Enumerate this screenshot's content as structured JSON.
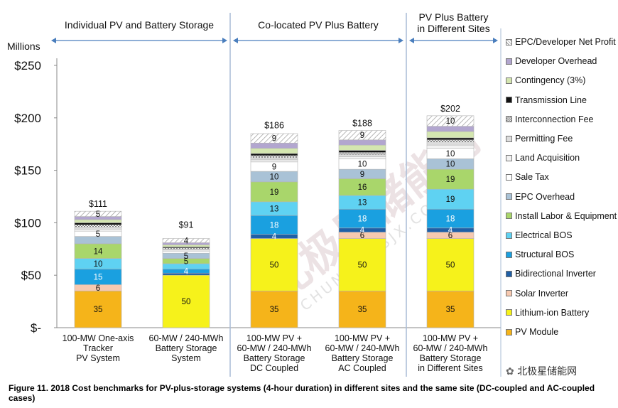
{
  "chart_data": {
    "type": "stacked-bar",
    "units_label": "Millions",
    "y_ticks": [
      "$-",
      "$50",
      "$100",
      "$150",
      "$200",
      "$250"
    ],
    "y_tick_values": [
      0,
      50,
      100,
      150,
      200,
      250
    ],
    "ylim": [
      0,
      250
    ],
    "groups": [
      {
        "label": "Individual PV and Battery Storage"
      },
      {
        "label": "Co-located PV Plus Battery"
      },
      {
        "label": "PV Plus Battery\nin Different Sites"
      }
    ],
    "categories": [
      "100-MW One-axis\nTracker\nPV System",
      "60-MW / 240-MWh\nBattery Storage\nSystem",
      "100-MW PV +\n60-MW / 240-MWh\nBattery Storage\nDC Coupled",
      "100-MW PV +\n60-MW / 240-MWh\nBattery Storage\nAC Coupled",
      "100-MW PV +\n60-MW / 240-MWh\nBattery Storage\nin Different Sites"
    ],
    "totals": [
      "$111",
      "$91",
      "$186",
      "$188",
      "$202"
    ],
    "total_values": [
      111,
      91,
      186,
      188,
      202
    ],
    "series": [
      {
        "name": "PV Module",
        "color": "#f5b41a",
        "values": [
          35,
          0,
          35,
          35,
          35
        ],
        "labels": [
          "35",
          "",
          "35",
          "35",
          "35"
        ]
      },
      {
        "name": "Lithium-ion Battery",
        "color": "#f6f21b",
        "values": [
          0,
          50,
          50,
          50,
          50
        ],
        "labels": [
          "",
          "50",
          "50",
          "50",
          "50"
        ]
      },
      {
        "name": "Solar Inverter",
        "color": "#f7c9b0",
        "values": [
          6,
          0,
          0,
          6,
          6
        ],
        "labels": [
          "6",
          "",
          "",
          "6",
          "6"
        ]
      },
      {
        "name": "Bidirectional Inverter",
        "color": "#1f5fa6",
        "values": [
          0,
          2,
          4,
          4,
          4
        ],
        "labels": [
          "",
          "",
          "4",
          "4",
          "4"
        ]
      },
      {
        "name": "Structural BOS",
        "color": "#1aa0e0",
        "values": [
          15,
          4,
          18,
          18,
          18
        ],
        "labels": [
          "15",
          "4",
          "18",
          "18",
          "18"
        ]
      },
      {
        "name": "Electrical BOS",
        "color": "#5fd2f2",
        "values": [
          10,
          5,
          13,
          13,
          19
        ],
        "labels": [
          "10",
          "",
          "13",
          "13",
          "19"
        ]
      },
      {
        "name": "Install Labor & Equipment",
        "color": "#a9d66b",
        "values": [
          14,
          5,
          19,
          16,
          19
        ],
        "labels": [
          "14",
          "5",
          "19",
          "16",
          "19"
        ]
      },
      {
        "name": "EPC Overhead",
        "color": "#a9c2d6",
        "values": [
          7,
          5,
          10,
          9,
          10
        ],
        "labels": [
          "",
          "5",
          "10",
          "9",
          "10"
        ]
      },
      {
        "name": "Sale Tax",
        "color": "#ffffff",
        "values": [
          5,
          2,
          9,
          10,
          10
        ],
        "labels": [
          "5",
          "",
          "9",
          "10",
          "10"
        ]
      },
      {
        "name": "Land Acquisition",
        "color": "#f2f2f2",
        "values": [
          2,
          1,
          2,
          2,
          3
        ],
        "labels": [
          "",
          "",
          "",
          "",
          ""
        ]
      },
      {
        "name": "Permitting Fee",
        "color": "#dddddd",
        "values": [
          2,
          1,
          2,
          2,
          3
        ],
        "labels": [
          "",
          "",
          "",
          "",
          ""
        ]
      },
      {
        "name": "Interconnection Fee",
        "color": "#9a9a9a",
        "values": [
          2,
          1,
          2,
          2,
          2
        ],
        "labels": [
          "",
          "",
          "",
          "",
          ""
        ]
      },
      {
        "name": "Transmission Line",
        "color": "#111111",
        "values": [
          2,
          1,
          2,
          2,
          2
        ],
        "labels": [
          "",
          "",
          "",
          "",
          ""
        ]
      },
      {
        "name": "Contingency (3%)",
        "color": "#d4e6b0",
        "values": [
          3,
          2,
          5,
          5,
          6
        ],
        "labels": [
          "",
          "",
          "",
          "",
          ""
        ]
      },
      {
        "name": "Developer Overhead",
        "color": "#b2a6cf",
        "values": [
          3,
          2,
          5,
          5,
          5
        ],
        "labels": [
          "",
          "",
          "",
          "",
          ""
        ]
      },
      {
        "name": "EPC/Developer Net Profit",
        "color": "#e8e8e8",
        "values": [
          5,
          4,
          9,
          9,
          10
        ],
        "labels": [
          "5",
          "4",
          "9",
          "9",
          "10"
        ]
      }
    ],
    "legend_order": [
      "EPC/Developer Net Profit",
      "Developer Overhead",
      "Contingency (3%)",
      "Transmission Line",
      "Interconnection Fee",
      "Permitting Fee",
      "Land Acquisition",
      "Sale Tax",
      "EPC Overhead",
      "Install Labor & Equipment",
      "Electrical BOS",
      "Structural BOS",
      "Bidirectional Inverter",
      "Solar Inverter",
      "Lithium-ion Battery",
      "PV Module"
    ],
    "legend_position": "right",
    "grid": false
  },
  "caption": "Figure 11. 2018 Cost benchmarks for PV-plus-storage systems (4-hour duration) in different sites and the same site (DC-coupled and AC-coupled cases)",
  "watermark": {
    "text_cn": "北极星储能网",
    "text_en": "CHUNENG.BJX.COM.CN",
    "logo_text": "北极星储能网"
  }
}
